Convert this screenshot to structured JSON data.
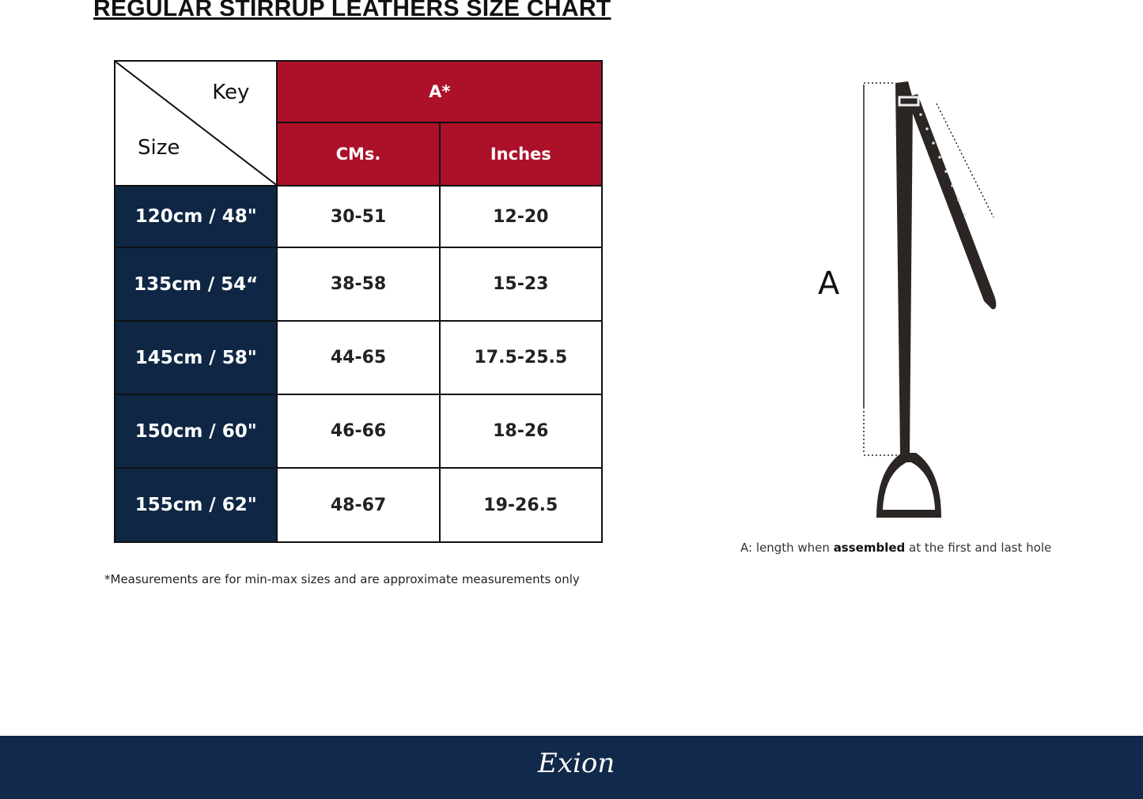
{
  "title": "REGULAR STIRRUP LEATHERS  SIZE CHART",
  "table": {
    "key_label": "Key",
    "size_label": "Size",
    "group_header": "A*",
    "columns": [
      "CMs.",
      "Inches"
    ],
    "rows": [
      {
        "size": "120cm / 48\"",
        "cms": "30-51",
        "inches": "12-20"
      },
      {
        "size": "135cm / 54“",
        "cms": "38-58",
        "inches": "15-23"
      },
      {
        "size": "145cm / 58\"",
        "cms": "44-65",
        "inches": "17.5-25.5"
      },
      {
        "size": "150cm / 60\"",
        "cms": "46-66",
        "inches": "18-26"
      },
      {
        "size": "155cm / 62\"",
        "cms": "48-67",
        "inches": "19-26.5"
      }
    ]
  },
  "note": "*Measurements are for min-max sizes and are approximate measurements only",
  "diagram": {
    "label": "A",
    "caption_prefix": "A: length when ",
    "caption_bold": "assembled",
    "caption_suffix": " at the first and last hole"
  },
  "footer": {
    "logo": "Exion"
  },
  "colors": {
    "header_red": "#ad1029",
    "size_navy": "#0f2744",
    "footer_navy": "#11294a"
  }
}
